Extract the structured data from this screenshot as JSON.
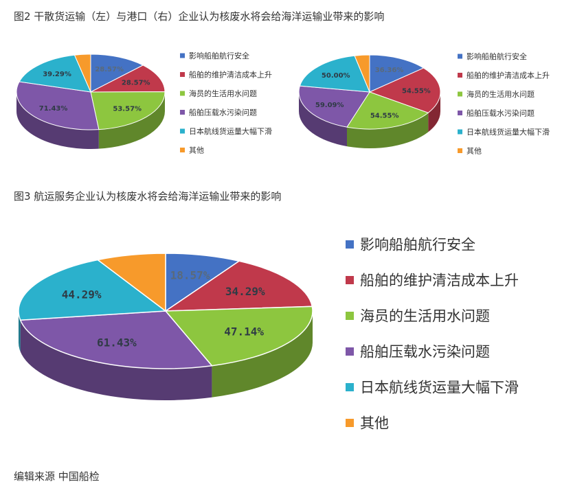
{
  "captions": {
    "figure2": "图2 干散货运输（左）与港口（右）企业认为核废水将会给海洋运输业带来的影响",
    "figure3": "图3 航运服务企业认为核废水将会给海洋运输业带来的影响",
    "source": "编辑来源 中国船检"
  },
  "colors": {
    "blue": "#4472C4",
    "red": "#C0394B",
    "green": "#8DC63F",
    "purple": "#7E57A8",
    "teal": "#2BB1CC",
    "orange": "#F79A2B"
  },
  "chart_data": [
    {
      "type": "pie",
      "title": "",
      "legend_position": "right",
      "categories": [
        "影响船舶航行安全",
        "船舶的维护清洁成本上升",
        "海员的生活用水问题",
        "船舶压载水污染问题",
        "日本航线货运量大幅下滑",
        "其他"
      ],
      "values": [
        28.57,
        28.57,
        53.57,
        71.43,
        39.29,
        8.0
      ],
      "data_labels": [
        "28.57%",
        "28.57%",
        "53.57%",
        "71.43%",
        "39.29%",
        ""
      ]
    },
    {
      "type": "pie",
      "title": "",
      "legend_position": "right",
      "categories": [
        "影响船舶航行安全",
        "船舶的维护清洁成本上升",
        "海员的生活用水问题",
        "船舶压载水污染问题",
        "日本航线货运量大幅下滑",
        "其他"
      ],
      "values": [
        36.36,
        54.55,
        54.55,
        59.09,
        50.0,
        9.0
      ],
      "data_labels": [
        "36.36%",
        "54.55%",
        "54.55%",
        "59.09%",
        "50.00%",
        ""
      ]
    },
    {
      "type": "pie",
      "title": "",
      "legend_position": "right",
      "categories": [
        "影响船舶航行安全",
        "船舶的维护清洁成本上升",
        "海员的生活用水问题",
        "船舶压载水污染问题",
        "日本航线货运量大幅下滑",
        "其他"
      ],
      "values": [
        18.57,
        34.29,
        47.14,
        61.43,
        44.29,
        17.0
      ],
      "data_labels": [
        "18.57%",
        "34.29%",
        "47.14%",
        "61.43%",
        "44.29%",
        ""
      ]
    }
  ]
}
